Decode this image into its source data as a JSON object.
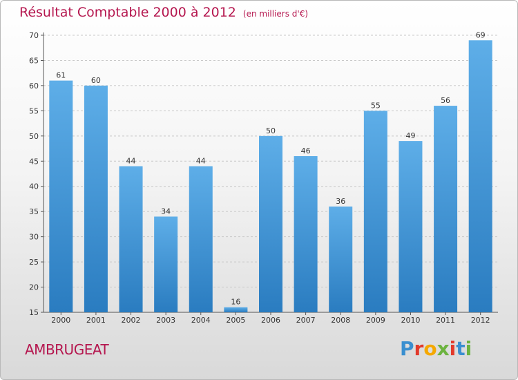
{
  "chart_data": {
    "type": "bar",
    "title": "Résultat Comptable 2000 à 2012",
    "subtitle": "(en milliers d'€)",
    "categories": [
      "2000",
      "2001",
      "2002",
      "2003",
      "2004",
      "2005",
      "2006",
      "2007",
      "2008",
      "2009",
      "2010",
      "2011",
      "2012"
    ],
    "values": [
      61,
      60,
      44,
      34,
      44,
      16,
      50,
      46,
      36,
      55,
      49,
      56,
      69
    ],
    "ylim": [
      15,
      70
    ],
    "yticks": [
      15,
      20,
      25,
      30,
      35,
      40,
      45,
      50,
      55,
      60,
      65,
      70
    ],
    "grid": true,
    "bar_color": "#3f8fd4"
  },
  "commune": "AMBRUGEAT",
  "logo": {
    "letters": [
      "P",
      "r",
      "o",
      "x",
      "i",
      "t",
      "i"
    ],
    "colors": [
      "#3a8fd0",
      "#e23a2b",
      "#f5a800",
      "#6cb33f",
      "#e23a2b",
      "#3a8fd0",
      "#6cb33f"
    ]
  }
}
